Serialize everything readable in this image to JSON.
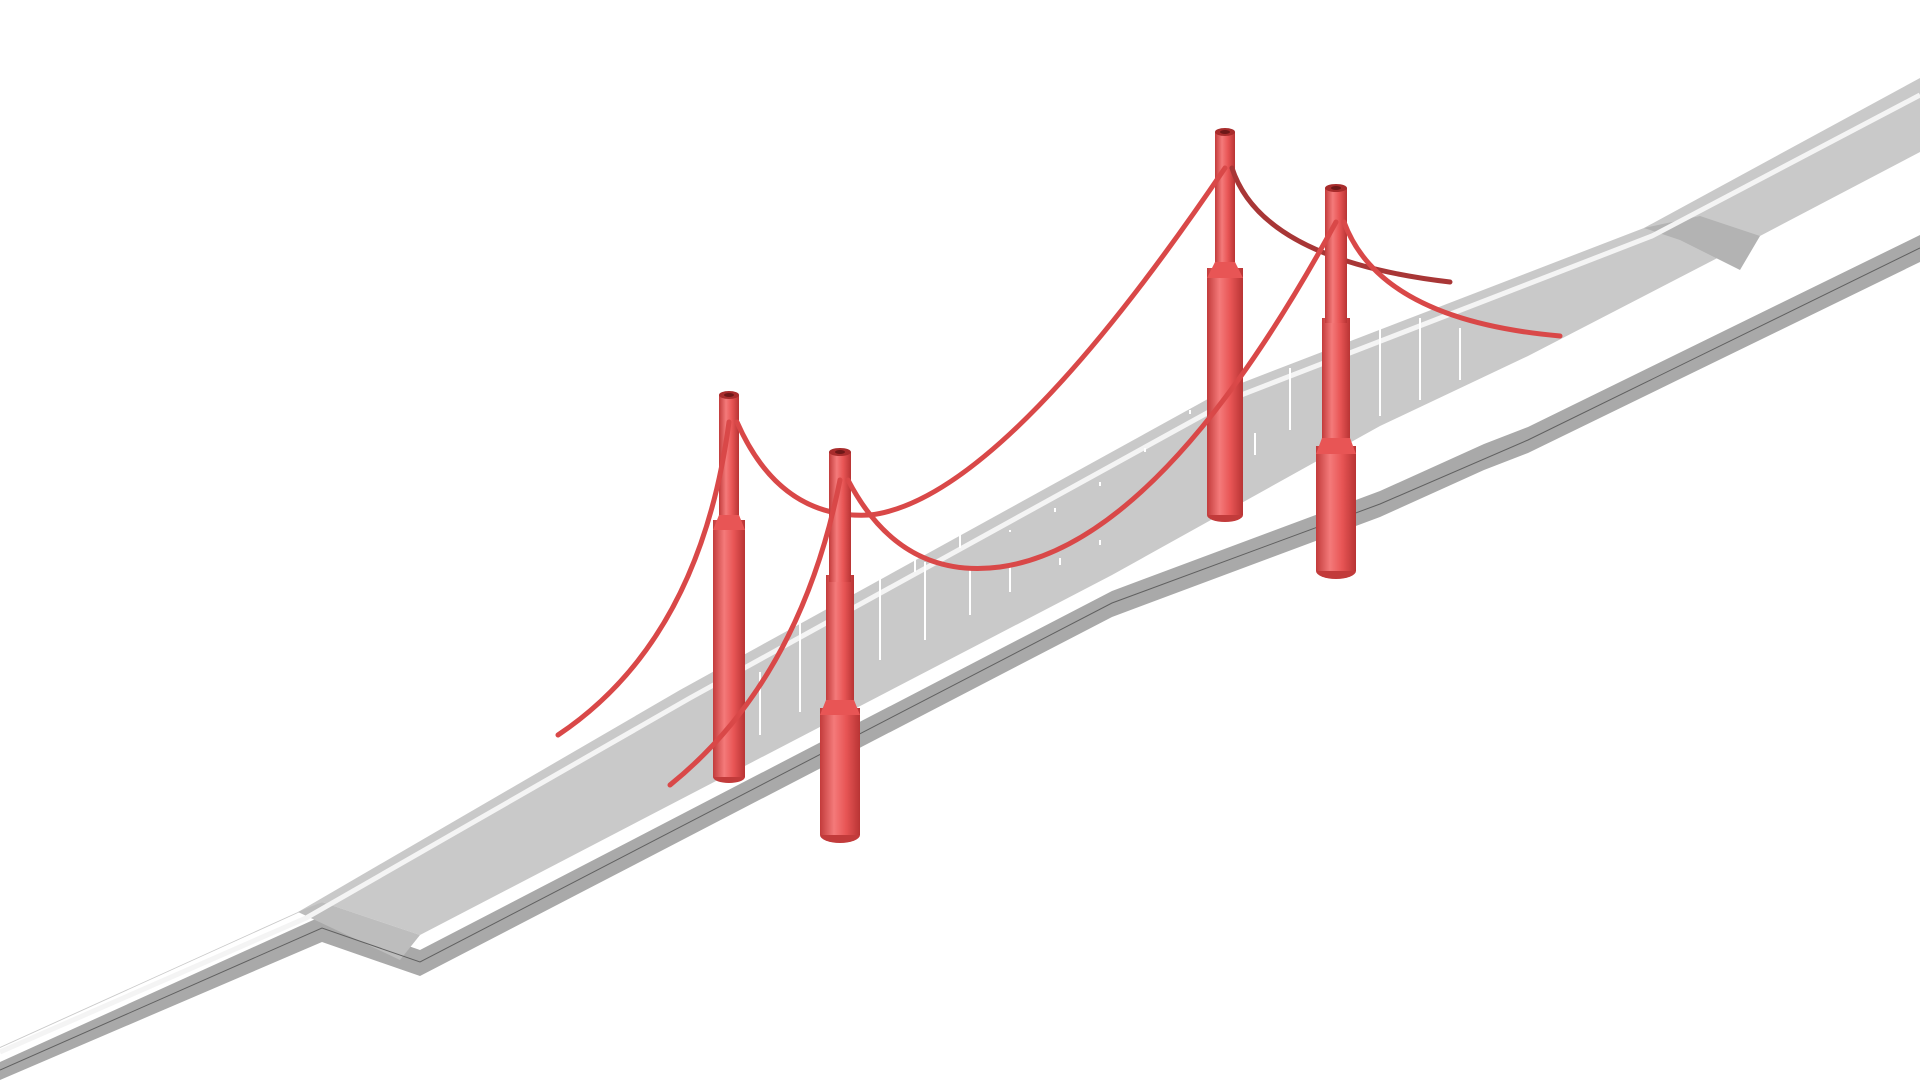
{
  "scene": {
    "subject": "suspension-bridge",
    "tower_count": 4,
    "cable_count": 4,
    "colors": {
      "background": "#ffffff",
      "deck_top": "#c9c9c9",
      "deck_top_light": "#d3d3d3",
      "deck_side": "#a9a9a9",
      "deck_side_dark": "#9a9a9a",
      "deck_edge_highlight": "#f2f2f2",
      "deck_outline": "#555555",
      "tower": "#e85555",
      "tower_dark": "#c23b3b",
      "tower_light": "#f47a7a",
      "cable": "#d94848",
      "cable_dark": "#9e2f2f",
      "hanger": "#ffffff"
    }
  }
}
